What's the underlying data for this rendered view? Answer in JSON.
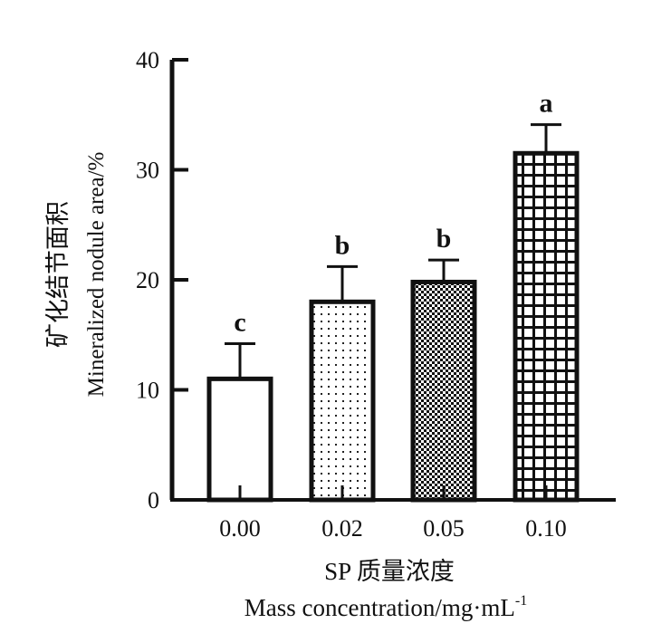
{
  "chart_data": {
    "type": "bar",
    "categories": [
      "0.00",
      "0.02",
      "0.05",
      "0.10"
    ],
    "values": [
      11.0,
      18.0,
      19.8,
      31.5
    ],
    "errors": [
      3.2,
      3.2,
      2.0,
      2.6
    ],
    "significance_letters": [
      "c",
      "b",
      "b",
      "a"
    ],
    "patterns": [
      "none",
      "dots",
      "checker",
      "grid"
    ],
    "ylim": [
      0,
      40
    ],
    "yticks": [
      0,
      10,
      20,
      30,
      40
    ],
    "ytick_labels": [
      "0",
      "10",
      "20",
      "30",
      "40"
    ],
    "ylabel_cn": "矿化结节面积",
    "ylabel_en": "Mineralized  nodule  area/%",
    "xlabel_cn": "SP 质量浓度",
    "xlabel_en": "Mass  concentration/mg·mL",
    "xlabel_en_sup": "-1",
    "grid": false,
    "legend": "none"
  }
}
